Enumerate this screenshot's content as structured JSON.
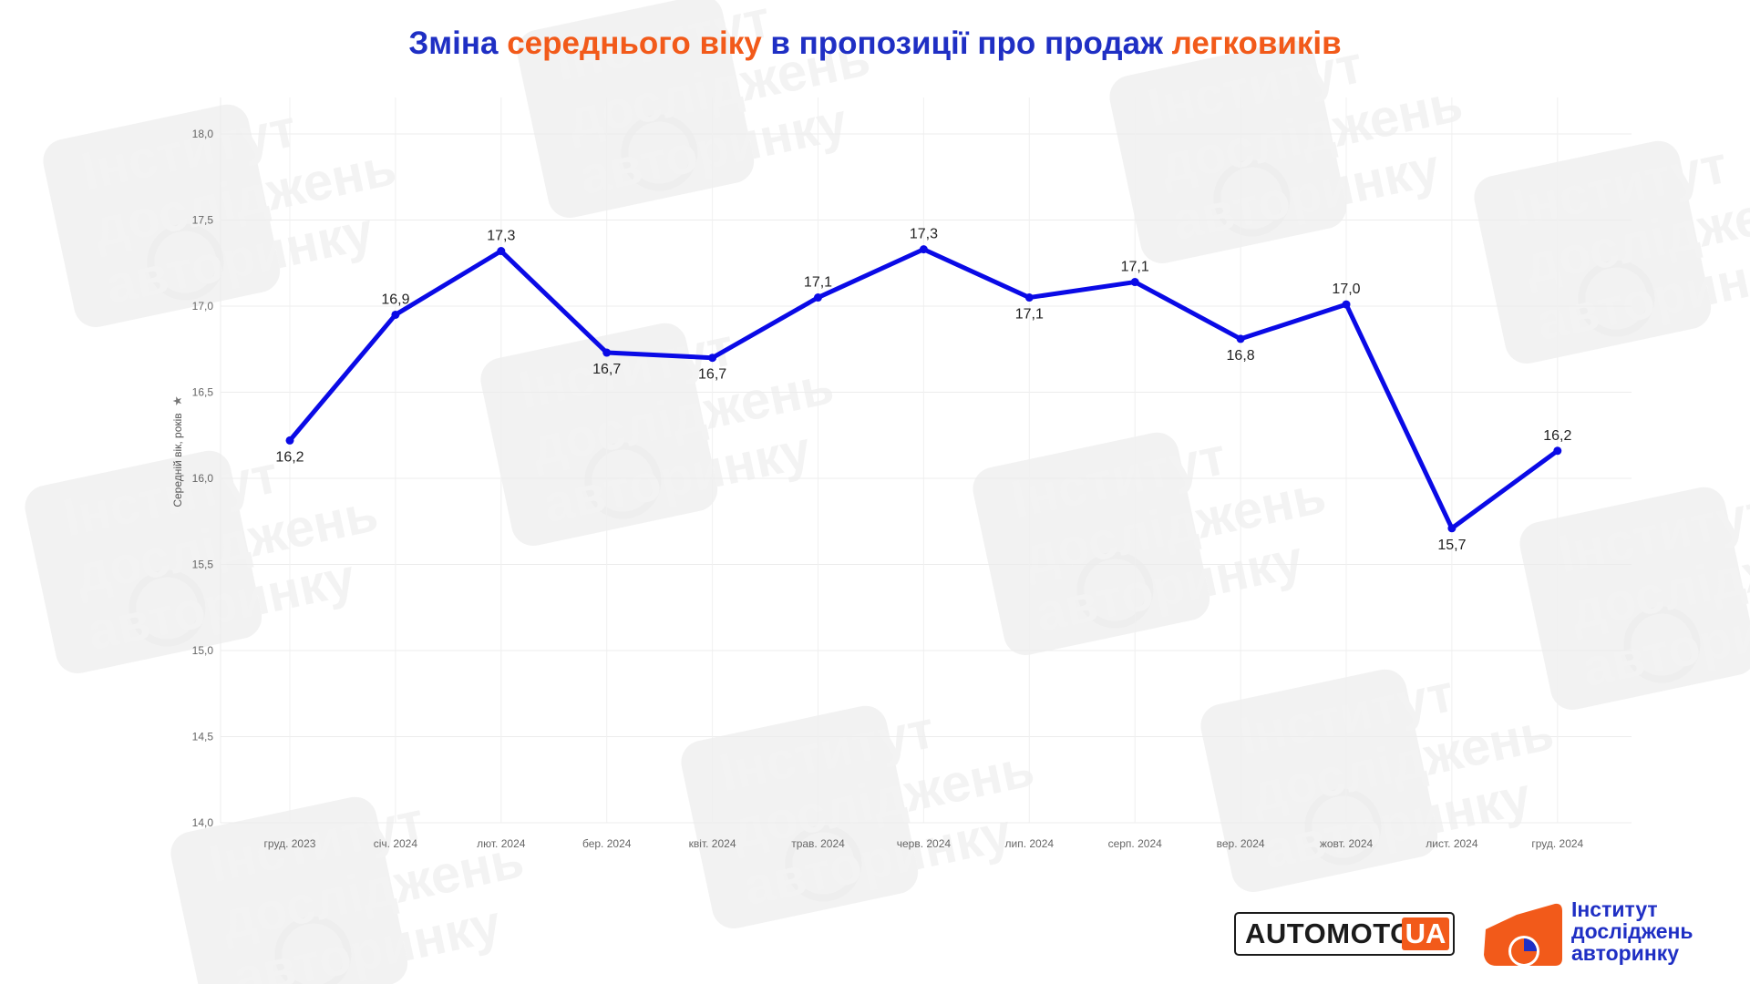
{
  "title": {
    "parts": [
      {
        "text": "Зміна ",
        "style": "blue"
      },
      {
        "text": "середнього віку",
        "style": "orange"
      },
      {
        "text": " в пропозиції про продаж ",
        "style": "blue"
      },
      {
        "text": "легковиків",
        "style": "orange"
      }
    ]
  },
  "colors": {
    "blue": "#1f2fc4",
    "orange": "#f25a1a",
    "line": "#0a0ae6"
  },
  "watermark": {
    "lines": [
      "Інститут",
      "досліджень",
      "авторинку"
    ]
  },
  "chart_data": {
    "type": "line",
    "title": "Зміна середнього віку в пропозиції про продаж легковиків",
    "xlabel": "",
    "ylabel": "Середній вік, років",
    "categories": [
      "груд. 2023",
      "січ. 2024",
      "лют. 2024",
      "бер. 2024",
      "квіт. 2024",
      "трав. 2024",
      "черв. 2024",
      "лип. 2024",
      "серп. 2024",
      "вер. 2024",
      "жовт. 2024",
      "лист. 2024",
      "груд. 2024"
    ],
    "series": [
      {
        "values": [
          16.22,
          16.95,
          17.32,
          16.73,
          16.7,
          17.05,
          17.33,
          17.05,
          17.14,
          16.81,
          17.01,
          15.71,
          16.16
        ]
      }
    ],
    "data_labels": [
      "16,2",
      "16,9",
      "17,3",
      "16,7",
      "16,7",
      "17,1",
      "17,3",
      "17,1",
      "17,1",
      "16,8",
      "17,0",
      "15,7",
      "16,2"
    ],
    "label_positions": [
      "below",
      "above",
      "above",
      "below",
      "below",
      "above",
      "above",
      "below",
      "above",
      "below",
      "above",
      "below",
      "above"
    ],
    "y_ticks": [
      "14,0",
      "14,5",
      "15,0",
      "15,5",
      "16,0",
      "16,5",
      "17,0",
      "17,5",
      "18,0"
    ],
    "ylim": [
      14.0,
      18.2
    ],
    "grid": true,
    "legend": "none"
  },
  "logos": {
    "automoto": {
      "text": "AUTOMOTO",
      "suffix": "UA"
    },
    "institute": {
      "lines": [
        "Інститут",
        "досліджень",
        "авторинку"
      ]
    }
  }
}
